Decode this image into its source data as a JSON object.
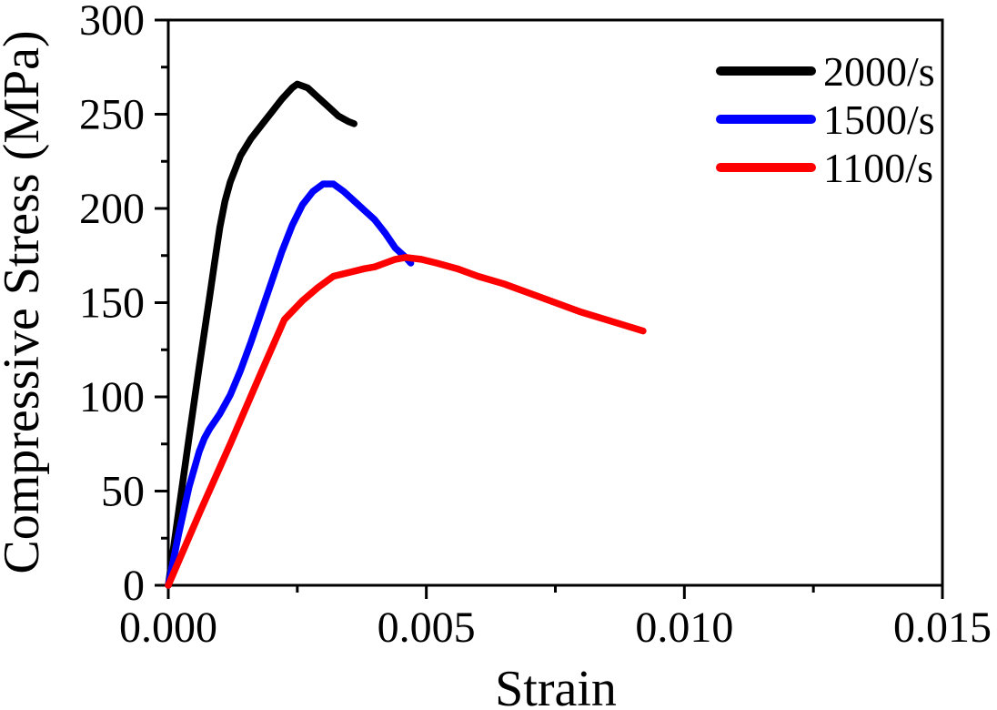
{
  "chart_data": {
    "type": "line",
    "title": "",
    "xlabel": "Strain",
    "ylabel": "Compressive Stress (MPa)",
    "xlim": [
      0,
      0.015
    ],
    "ylim": [
      0,
      300
    ],
    "x_major_ticks": [
      0,
      0.005,
      0.01,
      0.015
    ],
    "x_tick_labels": [
      "0.000",
      "0.005",
      "0.010",
      "0.015"
    ],
    "x_minor_ticks": [
      0.0025,
      0.0075,
      0.0125
    ],
    "y_major_ticks": [
      0,
      50,
      100,
      150,
      200,
      250,
      300
    ],
    "y_tick_labels": [
      "0",
      "50",
      "100",
      "150",
      "200",
      "250",
      "300"
    ],
    "y_minor_ticks": [
      25,
      75,
      125,
      175,
      225,
      275
    ],
    "grid": false,
    "frame_box": true,
    "legend_position": "top-right",
    "axis_color": "#000000",
    "background_color": "#ffffff",
    "series": [
      {
        "name": "2000/s",
        "color": "#000000",
        "points": [
          [
            0.0,
            0
          ],
          [
            0.0002,
            39
          ],
          [
            0.0004,
            78
          ],
          [
            0.0006,
            116
          ],
          [
            0.0008,
            153
          ],
          [
            0.0009,
            172
          ],
          [
            0.001,
            190
          ],
          [
            0.0011,
            204
          ],
          [
            0.0012,
            214
          ],
          [
            0.0014,
            228
          ],
          [
            0.0016,
            237
          ],
          [
            0.0018,
            244
          ],
          [
            0.002,
            251
          ],
          [
            0.0022,
            258
          ],
          [
            0.0024,
            264
          ],
          [
            0.0025,
            266
          ],
          [
            0.0027,
            264
          ],
          [
            0.0029,
            259
          ],
          [
            0.0031,
            254
          ],
          [
            0.0033,
            249
          ],
          [
            0.0035,
            246
          ],
          [
            0.0036,
            245
          ]
        ]
      },
      {
        "name": "1500/s",
        "color": "#0000ff",
        "points": [
          [
            0.0,
            0
          ],
          [
            0.0002,
            27
          ],
          [
            0.0004,
            52
          ],
          [
            0.0006,
            71
          ],
          [
            0.0007,
            78
          ],
          [
            0.0008,
            83
          ],
          [
            0.001,
            91
          ],
          [
            0.0012,
            101
          ],
          [
            0.0014,
            114
          ],
          [
            0.0016,
            129
          ],
          [
            0.0018,
            145
          ],
          [
            0.002,
            161
          ],
          [
            0.0022,
            177
          ],
          [
            0.0024,
            191
          ],
          [
            0.0026,
            202
          ],
          [
            0.0028,
            209
          ],
          [
            0.003,
            213
          ],
          [
            0.0032,
            213
          ],
          [
            0.0034,
            209
          ],
          [
            0.0036,
            204
          ],
          [
            0.0038,
            199
          ],
          [
            0.004,
            194
          ],
          [
            0.0042,
            187
          ],
          [
            0.0044,
            179
          ],
          [
            0.0046,
            174
          ],
          [
            0.0047,
            171
          ]
        ]
      },
      {
        "name": "1100/s",
        "color": "#ff0000",
        "points": [
          [
            0.0,
            0
          ],
          [
            0.0006,
            38
          ],
          [
            0.0012,
            75
          ],
          [
            0.0018,
            113
          ],
          [
            0.00225,
            141
          ],
          [
            0.0026,
            151
          ],
          [
            0.0029,
            158
          ],
          [
            0.0032,
            164
          ],
          [
            0.0035,
            166
          ],
          [
            0.0038,
            168
          ],
          [
            0.004,
            169
          ],
          [
            0.0042,
            171
          ],
          [
            0.0044,
            173
          ],
          [
            0.0046,
            174
          ],
          [
            0.0049,
            173
          ],
          [
            0.0052,
            171
          ],
          [
            0.0056,
            168
          ],
          [
            0.006,
            164
          ],
          [
            0.0065,
            160
          ],
          [
            0.007,
            155
          ],
          [
            0.0075,
            150
          ],
          [
            0.008,
            145
          ],
          [
            0.0086,
            140
          ],
          [
            0.0092,
            135
          ]
        ]
      }
    ]
  }
}
